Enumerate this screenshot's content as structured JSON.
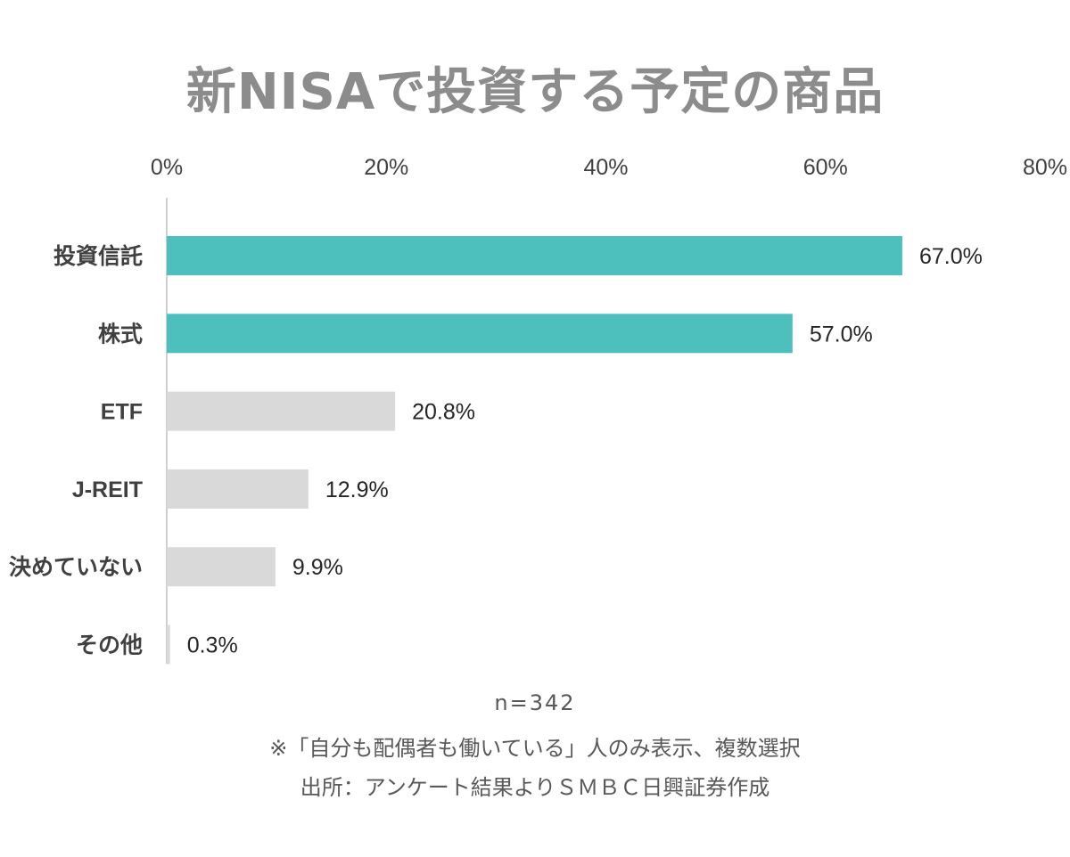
{
  "chart_data": {
    "type": "bar",
    "orientation": "horizontal",
    "title": "新NISAで投資する予定の商品",
    "categories": [
      "投資信託",
      "株式",
      "ETF",
      "J-REIT",
      "決めていない",
      "その他"
    ],
    "values": [
      67.0,
      57.0,
      20.8,
      12.9,
      9.9,
      0.3
    ],
    "value_labels": [
      "67.0%",
      "57.0%",
      "20.8%",
      "12.9%",
      "9.9%",
      "0.3%"
    ],
    "bar_colors": [
      "#4dbfbd",
      "#4dbfbd",
      "#d9d9d9",
      "#d9d9d9",
      "#d9d9d9",
      "#d9d9d9"
    ],
    "xlim": [
      0,
      80
    ],
    "xticks": [
      0,
      20,
      40,
      60,
      80
    ],
    "xtick_labels": [
      "0%",
      "20%",
      "40%",
      "60%",
      "80%"
    ],
    "axis_position": "top",
    "grid": false,
    "legend": false
  },
  "footnotes": {
    "sample": "n=342",
    "note": "※「自分も配偶者も働いている」人のみ表示、複数選択",
    "source": "出所：アンケート結果よりＳＭＢＣ日興証券作成"
  }
}
